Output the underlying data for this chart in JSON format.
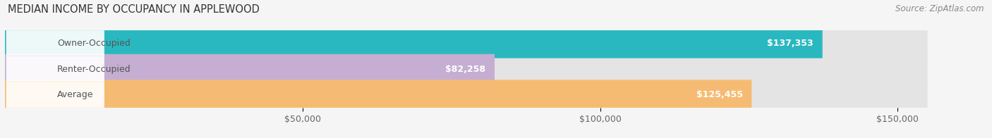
{
  "title": "MEDIAN INCOME BY OCCUPANCY IN APPLEWOOD",
  "source": "Source: ZipAtlas.com",
  "categories": [
    "Owner-Occupied",
    "Renter-Occupied",
    "Average"
  ],
  "values": [
    137353,
    82258,
    125455
  ],
  "labels": [
    "$137,353",
    "$82,258",
    "$125,455"
  ],
  "bar_colors": [
    "#2ab8c0",
    "#c5aed2",
    "#f6bb72"
  ],
  "background_color": "#f5f5f5",
  "bar_bg_color": "#e4e4e4",
  "xlim": [
    0,
    165000
  ],
  "max_display": 150000,
  "xticks": [
    50000,
    100000,
    150000
  ],
  "xticklabels": [
    "$50,000",
    "$100,000",
    "$150,000"
  ],
  "title_fontsize": 10.5,
  "source_fontsize": 8.5,
  "tick_fontsize": 9,
  "label_fontsize": 9,
  "cat_fontsize": 9,
  "bar_height": 0.58,
  "fig_width": 14.06,
  "fig_height": 1.96,
  "dpi": 100
}
